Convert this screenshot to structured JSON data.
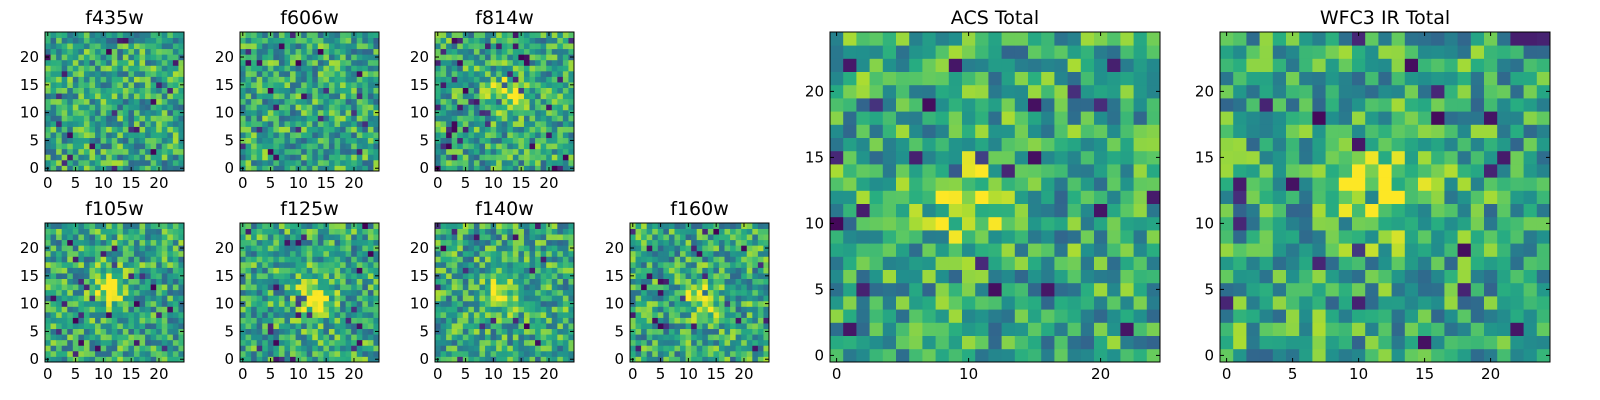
{
  "chart_data": [
    {
      "type": "heatmap",
      "title": "f435w",
      "grid_size": 25,
      "colormap": "viridis",
      "xticks": [
        0,
        5,
        10,
        15,
        20
      ],
      "yticks": [
        0,
        5,
        10,
        15,
        20
      ],
      "xlim": [
        -0.5,
        24.5
      ],
      "ylim": [
        -0.5,
        24.5
      ],
      "blob_center": null
    },
    {
      "type": "heatmap",
      "title": "f606w",
      "grid_size": 25,
      "colormap": "viridis",
      "xticks": [
        0,
        5,
        10,
        15,
        20
      ],
      "yticks": [
        0,
        5,
        10,
        15,
        20
      ],
      "xlim": [
        -0.5,
        24.5
      ],
      "ylim": [
        -0.5,
        24.5
      ],
      "blob_center": null
    },
    {
      "type": "heatmap",
      "title": "f814w",
      "grid_size": 25,
      "colormap": "viridis",
      "xticks": [
        0,
        5,
        10,
        15,
        20
      ],
      "yticks": [
        0,
        5,
        10,
        15,
        20
      ],
      "xlim": [
        -0.5,
        24.5
      ],
      "ylim": [
        -0.5,
        24.5
      ],
      "blob_center": [
        12,
        13
      ]
    },
    {
      "type": "heatmap",
      "title": "f105w",
      "grid_size": 25,
      "colormap": "viridis",
      "xticks": [
        0,
        5,
        10,
        15,
        20
      ],
      "yticks": [
        0,
        5,
        10,
        15,
        20
      ],
      "xlim": [
        -0.5,
        24.5
      ],
      "ylim": [
        -0.5,
        24.5
      ],
      "blob_center": [
        11,
        13
      ]
    },
    {
      "type": "heatmap",
      "title": "f125w",
      "grid_size": 25,
      "colormap": "viridis",
      "xticks": [
        0,
        5,
        10,
        15,
        20
      ],
      "yticks": [
        0,
        5,
        10,
        15,
        20
      ],
      "xlim": [
        -0.5,
        24.5
      ],
      "ylim": [
        -0.5,
        24.5
      ],
      "blob_center": [
        13,
        11
      ]
    },
    {
      "type": "heatmap",
      "title": "f140w",
      "grid_size": 25,
      "colormap": "viridis",
      "xticks": [
        0,
        5,
        10,
        15,
        20
      ],
      "yticks": [
        0,
        5,
        10,
        15,
        20
      ],
      "xlim": [
        -0.5,
        24.5
      ],
      "ylim": [
        -0.5,
        24.5
      ],
      "blob_center": [
        11,
        12
      ]
    },
    {
      "type": "heatmap",
      "title": "f160w",
      "grid_size": 25,
      "colormap": "viridis",
      "xticks": [
        0,
        5,
        10,
        15,
        20
      ],
      "yticks": [
        0,
        5,
        10,
        15,
        20
      ],
      "xlim": [
        -0.5,
        24.5
      ],
      "ylim": [
        -0.5,
        24.5
      ],
      "blob_center": [
        13,
        11
      ]
    },
    {
      "type": "heatmap",
      "title": "ACS Total",
      "grid_size": 25,
      "colormap": "viridis",
      "xticks": [
        0,
        10,
        20
      ],
      "yticks": [
        0,
        5,
        10,
        15,
        20
      ],
      "xlim": [
        -0.5,
        24.5
      ],
      "ylim": [
        -0.5,
        24.5
      ],
      "blob_center": [
        10,
        12
      ]
    },
    {
      "type": "heatmap",
      "title": "WFC3 IR Total",
      "grid_size": 25,
      "colormap": "viridis",
      "xticks": [
        0,
        5,
        10,
        15,
        20
      ],
      "yticks": [
        0,
        5,
        10,
        15,
        20
      ],
      "xlim": [
        -0.5,
        24.5
      ],
      "ylim": [
        -0.5,
        24.5
      ],
      "blob_center": [
        12,
        12
      ]
    }
  ]
}
